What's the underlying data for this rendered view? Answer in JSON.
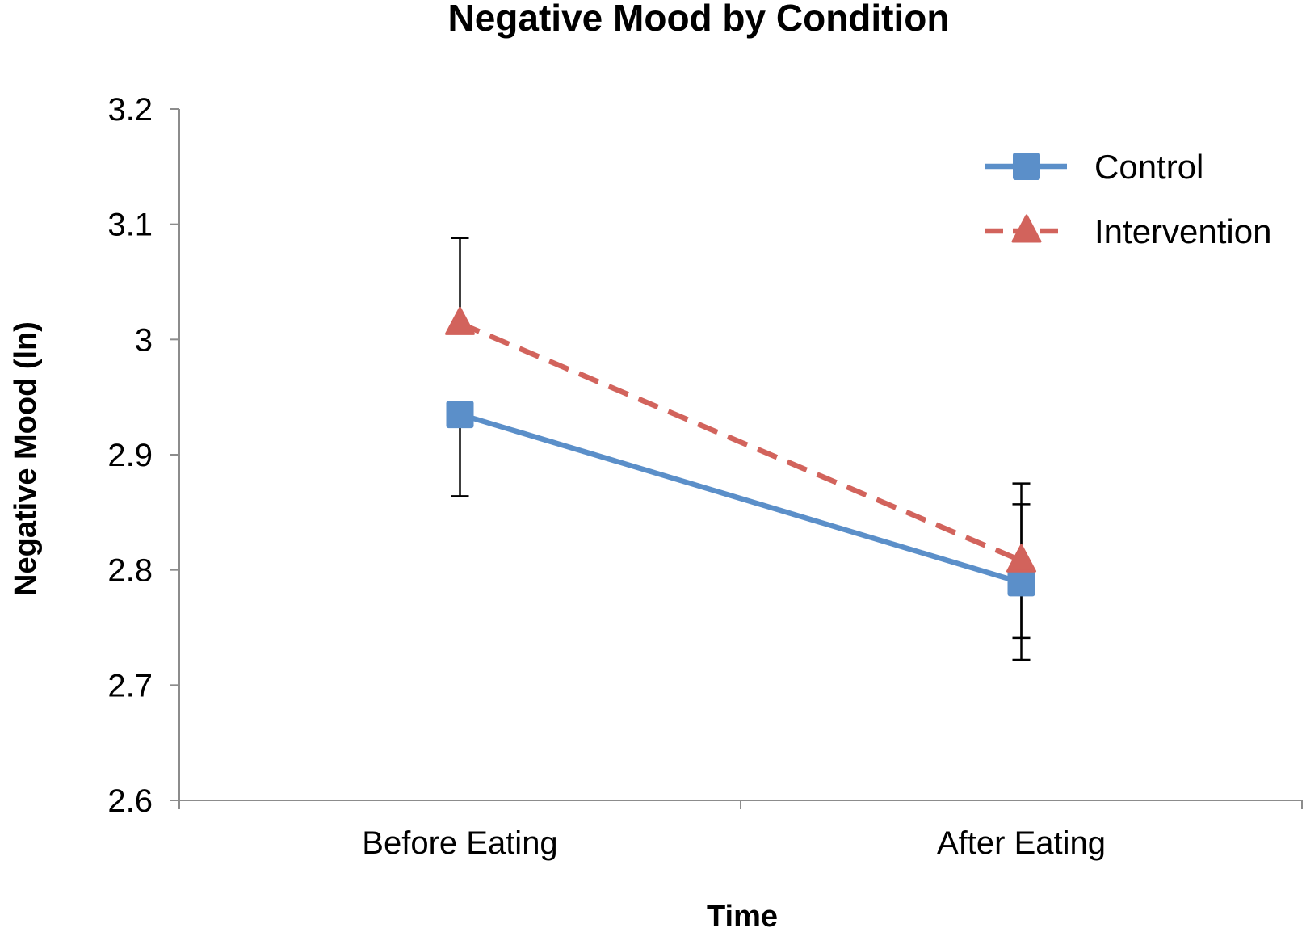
{
  "chart_data": {
    "type": "line",
    "title": "Negative Mood by Condition",
    "xlabel": "Time",
    "ylabel": "Negative Mood (ln)",
    "categories": [
      "Before Eating",
      "After Eating"
    ],
    "ylim": [
      2.6,
      3.2
    ],
    "yticks": [
      2.6,
      2.7,
      2.8,
      2.9,
      3.0,
      3.1,
      3.2
    ],
    "ytick_labels": [
      "2.6",
      "2.7",
      "2.8",
      "2.9",
      "3",
      "3.1",
      "3.2"
    ],
    "grid": false,
    "legend_position": "top-right",
    "series": [
      {
        "name": "Control",
        "values": [
          2.935,
          2.789
        ],
        "error_low": [
          2.864,
          2.741
        ],
        "error_high": [
          2.935,
          2.857
        ],
        "color": "#5b8fc9",
        "line_style": "solid",
        "marker": "square"
      },
      {
        "name": "Intervention",
        "values": [
          3.014,
          2.808
        ],
        "error_low": [
          3.014,
          2.722
        ],
        "error_high": [
          3.088,
          2.875
        ],
        "color": "#d2635c",
        "line_style": "dashed",
        "marker": "triangle"
      }
    ]
  }
}
